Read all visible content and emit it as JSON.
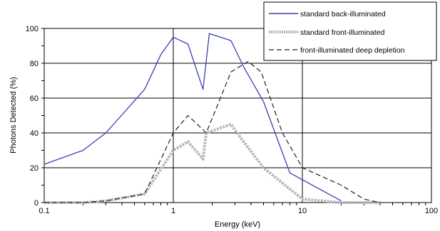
{
  "chart_data": {
    "type": "line",
    "xscale": "log",
    "xlim": [
      0.1,
      100
    ],
    "ylim": [
      0,
      100
    ],
    "xlabel": "Energy (keV)",
    "ylabel": "Photons Detected (%)",
    "x_ticks": [
      "0.1",
      "1",
      "10",
      "100"
    ],
    "y_ticks": [
      "0",
      "20",
      "40",
      "60",
      "80",
      "100"
    ],
    "grid": true,
    "legend_position": "top-right",
    "series": [
      {
        "name": "standard back-illuminated",
        "color": "#3b3fb0",
        "style": "solid",
        "points": [
          [
            0.1,
            22
          ],
          [
            0.2,
            30
          ],
          [
            0.3,
            40
          ],
          [
            0.6,
            65
          ],
          [
            0.8,
            85
          ],
          [
            1.0,
            95
          ],
          [
            1.3,
            91
          ],
          [
            1.7,
            65
          ],
          [
            1.9,
            97
          ],
          [
            2.8,
            93
          ],
          [
            3.5,
            78
          ],
          [
            5,
            58
          ],
          [
            8,
            17
          ],
          [
            20,
            1
          ]
        ]
      },
      {
        "name": "standard front-illuminated",
        "color": "#b8b8b8",
        "style": "thick",
        "points": [
          [
            0.1,
            0
          ],
          [
            0.2,
            0
          ],
          [
            0.3,
            1
          ],
          [
            0.6,
            5
          ],
          [
            1.0,
            30
          ],
          [
            1.3,
            35
          ],
          [
            1.7,
            25
          ],
          [
            1.8,
            40
          ],
          [
            2.8,
            45
          ],
          [
            3.5,
            35
          ],
          [
            5,
            20
          ],
          [
            10,
            2
          ],
          [
            20,
            0
          ],
          [
            40,
            0
          ]
        ]
      },
      {
        "name": "front-illuminated deep depletion",
        "color": "#222222",
        "style": "dashed",
        "points": [
          [
            0.1,
            0
          ],
          [
            0.2,
            0
          ],
          [
            0.3,
            1
          ],
          [
            0.6,
            5
          ],
          [
            1.0,
            40
          ],
          [
            1.3,
            50
          ],
          [
            1.8,
            40
          ],
          [
            2.8,
            75
          ],
          [
            3.8,
            81
          ],
          [
            4.8,
            75
          ],
          [
            7,
            40
          ],
          [
            10,
            20
          ],
          [
            20,
            10
          ],
          [
            30,
            2
          ],
          [
            40,
            0
          ]
        ]
      }
    ]
  }
}
